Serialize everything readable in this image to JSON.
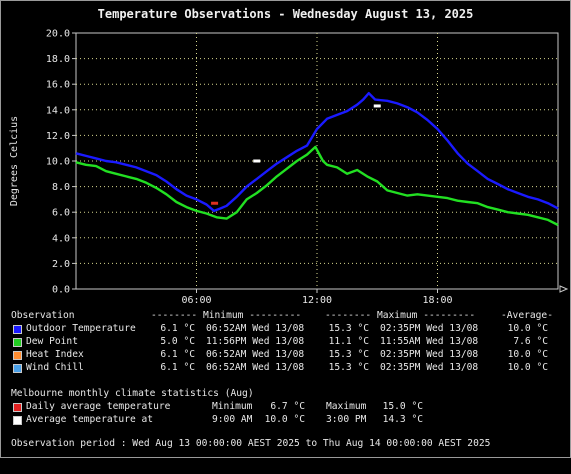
{
  "chart_data": {
    "type": "line",
    "title": "Temperature Observations - Wednesday August 13, 2025",
    "ylabel": "Degrees Celcius",
    "xlabel": "",
    "ylim": [
      0,
      20
    ],
    "xlim": [
      0,
      24
    ],
    "yticks": [
      "0.0",
      "2.0",
      "4.0",
      "6.0",
      "8.0",
      "10.0",
      "12.0",
      "14.0",
      "16.0",
      "18.0",
      "20.0"
    ],
    "xticks": [
      {
        "value": 6,
        "label": "06:00"
      },
      {
        "value": 12,
        "label": "12:00"
      },
      {
        "value": 18,
        "label": "18:00"
      }
    ],
    "grid": true,
    "series": [
      {
        "name": "Outdoor Temperature",
        "color": "#1a1aff",
        "x": [
          0,
          0.5,
          1,
          1.5,
          2,
          2.5,
          3,
          3.5,
          4,
          4.5,
          5,
          5.5,
          6,
          6.5,
          6.87,
          7.2,
          7.5,
          8,
          8.5,
          9,
          9.5,
          10,
          10.5,
          11,
          11.5,
          12,
          12.5,
          13,
          13.5,
          14,
          14.3,
          14.58,
          14.9,
          15.5,
          16,
          16.5,
          17,
          17.5,
          18,
          18.5,
          19,
          19.5,
          20,
          20.5,
          21,
          21.5,
          22,
          22.5,
          23,
          23.5,
          24
        ],
        "y": [
          10.6,
          10.4,
          10.2,
          10.0,
          9.9,
          9.7,
          9.5,
          9.2,
          8.9,
          8.4,
          7.8,
          7.3,
          7.0,
          6.6,
          6.1,
          6.3,
          6.5,
          7.2,
          8.0,
          8.6,
          9.2,
          9.8,
          10.3,
          10.8,
          11.2,
          12.5,
          13.3,
          13.6,
          13.9,
          14.4,
          14.8,
          15.3,
          14.8,
          14.7,
          14.5,
          14.2,
          13.8,
          13.2,
          12.5,
          11.6,
          10.6,
          9.8,
          9.2,
          8.6,
          8.2,
          7.8,
          7.5,
          7.2,
          7.0,
          6.7,
          6.3
        ]
      },
      {
        "name": "Dew Point",
        "color": "#22e022",
        "x": [
          0,
          0.5,
          1,
          1.5,
          2,
          2.5,
          3,
          3.5,
          4,
          4.5,
          5,
          5.5,
          6,
          6.5,
          7,
          7.5,
          8,
          8.5,
          9,
          9.5,
          10,
          10.5,
          11,
          11.5,
          11.92,
          12.3,
          12.5,
          13,
          13.5,
          14,
          14.5,
          15,
          15.5,
          16,
          16.5,
          17,
          17.5,
          18,
          18.5,
          19,
          19.5,
          20,
          20.5,
          21,
          21.5,
          22,
          22.5,
          23,
          23.5,
          24
        ],
        "y": [
          9.9,
          9.7,
          9.6,
          9.2,
          9.0,
          8.8,
          8.6,
          8.3,
          7.9,
          7.4,
          6.8,
          6.4,
          6.1,
          5.9,
          5.6,
          5.5,
          6.0,
          7.0,
          7.5,
          8.1,
          8.8,
          9.4,
          10.0,
          10.5,
          11.1,
          10.0,
          9.7,
          9.5,
          9.0,
          9.3,
          8.8,
          8.4,
          7.7,
          7.5,
          7.3,
          7.4,
          7.3,
          7.2,
          7.1,
          6.9,
          6.8,
          6.7,
          6.4,
          6.2,
          6.0,
          5.9,
          5.8,
          5.6,
          5.4,
          5.0
        ]
      }
    ],
    "markers": [
      {
        "name": "Daily average temperature minimum",
        "x": 6.9,
        "y": 6.7,
        "color": "#e03020"
      },
      {
        "name": "Average temperature minimum",
        "x": 9,
        "y": 10.0,
        "color": "#ffffff"
      },
      {
        "name": "Average temperature maximum",
        "x": 15,
        "y": 14.3,
        "color": "#ffffff"
      }
    ]
  },
  "stats": {
    "header": {
      "observation": "Observation",
      "minimum": "-------- Minimum ---------",
      "maximum": "-------- Maximum ---------",
      "average": "-Average-"
    },
    "rows": [
      {
        "label": "Outdoor Temperature",
        "color": "#1a1aff",
        "min_value": "6.1 °C",
        "min_time": "06:52AM Wed 13/08",
        "max_value": "15.3 °C",
        "max_time": "02:35PM Wed 13/08",
        "average": "10.0 °C"
      },
      {
        "label": "Dew Point",
        "color": "#22cc22",
        "min_value": "5.0 °C",
        "min_time": "11:56PM Wed 13/08",
        "max_value": "11.1 °C",
        "max_time": "11:55AM Wed 13/08",
        "average": "7.6 °C"
      },
      {
        "label": "Heat Index",
        "color": "#ff8c30",
        "min_value": "6.1 °C",
        "min_time": "06:52AM Wed 13/08",
        "max_value": "15.3 °C",
        "max_time": "02:35PM Wed 13/08",
        "average": "10.0 °C"
      },
      {
        "label": "Wind Chill",
        "color": "#4aa0e8",
        "min_value": "6.1 °C",
        "min_time": "06:52AM Wed 13/08",
        "max_value": "15.3 °C",
        "max_time": "02:35PM Wed 13/08",
        "average": "10.0 °C"
      }
    ],
    "climate_title": "Melbourne monthly climate statistics (Aug)",
    "climate_rows": [
      {
        "label": "Daily average temperature",
        "color": "#e02020",
        "col1": "Minimum",
        "col2": "6.7 °C",
        "col3": "Maximum",
        "col4": "15.0 °C"
      },
      {
        "label": "Average temperature at",
        "color": "#ffffff",
        "col1": "9:00 AM",
        "col2": "10.0 °C",
        "col3": "3:00 PM",
        "col4": "14.3 °C"
      }
    ],
    "period": "Observation period : Wed Aug 13 00:00:00 AEST 2025 to Thu Aug 14 00:00:00 AEST 2025"
  }
}
